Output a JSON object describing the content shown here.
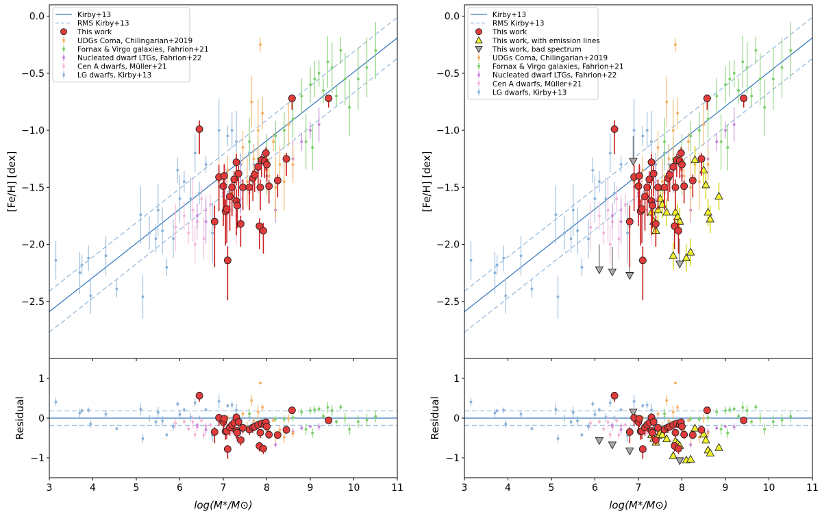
{
  "chart_data": [
    {
      "type": "scatter",
      "panel": "left",
      "xlabel": "log(M*/M⊙)",
      "ylabel_main": "[Fe/H] [dex]",
      "ylabel_residual": "Residual",
      "xlim": [
        3,
        11
      ],
      "ylim_main": [
        -3.0,
        0.1
      ],
      "ylim_residual": [
        -1.5,
        1.5
      ],
      "xticks": [
        "3",
        "4",
        "5",
        "6",
        "7",
        "8",
        "9",
        "10",
        "11"
      ],
      "yticks_main": [
        "0.0",
        "−0.5",
        "−1.0",
        "−1.5",
        "−2.0",
        "−2.5"
      ],
      "yticks_residual": [
        "1",
        "0",
        "−1"
      ],
      "legend": [
        "Kirby+13",
        "RMS Kirby+13",
        "This work",
        "UDGs Coma, Chilingarian+2019",
        "Fornax & Virgo galaxies, Fahrion+21",
        "Nucleated dwarf LTGs, Fahrion+22",
        "Cen A dwarfs, Müller+21",
        "LG dwarfs, Kirby+13"
      ]
    },
    {
      "type": "scatter",
      "panel": "right",
      "xlabel": "log(M*/M⊙)",
      "ylabel_main": "[Fe/H] [dex]",
      "ylabel_residual": "Residual",
      "xlim": [
        3,
        11
      ],
      "ylim_main": [
        -3.0,
        0.1
      ],
      "ylim_residual": [
        -1.5,
        1.5
      ],
      "xticks": [
        "3",
        "4",
        "5",
        "6",
        "7",
        "8",
        "9",
        "10",
        "11"
      ],
      "yticks_main": [
        "0.0",
        "−0.5",
        "−1.0",
        "−1.5",
        "−2.0",
        "−2.5"
      ],
      "yticks_residual": [
        "1",
        "0",
        "−1"
      ],
      "legend": [
        "Kirby+13",
        "RMS Kirby+13",
        "This work",
        "This work, with emission lines",
        "This work, bad spectrum",
        "UDGs Coma, Chilingarian+2019",
        "Fornax & Virgo galaxies, Fahrion+21",
        "Nucleated dwarf LTGs, Fahrion+22",
        "Cen A dwarfs, Müller+21",
        "LG dwarfs, Kirby+13"
      ]
    }
  ],
  "relation": {
    "name": "Kirby+13",
    "line": [
      [
        3,
        -2.59
      ],
      [
        11,
        -0.19
      ]
    ],
    "rms": 0.18
  },
  "series": {
    "this_work": {
      "color": "#e23b3b",
      "points": [
        [
          6.45,
          -0.99,
          0.22
        ],
        [
          6.8,
          -1.8,
          0.4
        ],
        [
          6.9,
          -1.41,
          0.3
        ],
        [
          7.0,
          -1.49,
          0.35
        ],
        [
          7.02,
          -1.4,
          0.3
        ],
        [
          7.05,
          -1.71,
          0.3
        ],
        [
          7.08,
          -1.69,
          0.3
        ],
        [
          7.1,
          -2.14,
          0.35
        ],
        [
          7.15,
          -1.58,
          0.3
        ],
        [
          7.2,
          -1.5,
          0.25
        ],
        [
          7.25,
          -1.43,
          0.2
        ],
        [
          7.3,
          -1.28,
          0.2
        ],
        [
          7.3,
          -1.62,
          0.3
        ],
        [
          7.32,
          -1.66,
          0.2
        ],
        [
          7.35,
          -1.38,
          0.2
        ],
        [
          7.4,
          -1.82,
          0.2
        ],
        [
          7.45,
          -1.5,
          0.2
        ],
        [
          7.6,
          -1.5,
          0.2
        ],
        [
          7.68,
          -1.42,
          0.2
        ],
        [
          7.72,
          -1.39,
          0.15
        ],
        [
          7.8,
          -1.32,
          0.15
        ],
        [
          7.83,
          -1.84,
          0.2
        ],
        [
          7.85,
          -1.5,
          0.2
        ],
        [
          7.88,
          -1.26,
          0.15
        ],
        [
          7.92,
          -1.88,
          0.2
        ],
        [
          7.95,
          -1.27,
          0.15
        ],
        [
          7.98,
          -1.2,
          0.15
        ],
        [
          8.0,
          -1.3,
          0.15
        ],
        [
          8.05,
          -1.49,
          0.15
        ],
        [
          8.25,
          -1.44,
          0.15
        ],
        [
          8.45,
          -1.25,
          0.15
        ],
        [
          8.58,
          -0.72,
          0.1
        ],
        [
          9.42,
          -0.72,
          0.08
        ]
      ]
    },
    "emission_lines": {
      "color": "#f2f22c",
      "points": [
        [
          7.3,
          -1.72
        ],
        [
          7.35,
          -1.8
        ],
        [
          7.4,
          -1.88
        ],
        [
          7.45,
          -1.7
        ],
        [
          7.5,
          -1.6
        ],
        [
          7.55,
          -1.65
        ],
        [
          7.6,
          -1.5
        ],
        [
          7.65,
          -1.72
        ],
        [
          7.8,
          -2.1
        ],
        [
          7.85,
          -1.72
        ],
        [
          7.9,
          -1.76
        ],
        [
          7.95,
          -1.8
        ],
        [
          8.1,
          -2.12
        ],
        [
          8.2,
          -2.07
        ],
        [
          8.3,
          -1.26
        ],
        [
          8.5,
          -1.35
        ],
        [
          8.55,
          -1.48
        ],
        [
          8.6,
          -1.72
        ],
        [
          8.65,
          -1.78
        ],
        [
          8.85,
          -1.58
        ]
      ]
    },
    "bad_spectrum": {
      "color": "#a9a9a9",
      "points": [
        [
          6.1,
          -2.22
        ],
        [
          6.4,
          -2.24
        ],
        [
          6.8,
          -2.27
        ],
        [
          6.88,
          -1.27
        ],
        [
          7.95,
          -2.17
        ]
      ]
    },
    "udgs": {
      "color": "#f5b266",
      "points": [
        [
          6.9,
          -1.45
        ],
        [
          7.0,
          -1.7
        ],
        [
          7.1,
          -1.35
        ],
        [
          7.2,
          -1.55
        ],
        [
          7.3,
          -1.3
        ],
        [
          7.45,
          -1.15
        ],
        [
          7.55,
          -1.45
        ],
        [
          7.65,
          -0.75
        ],
        [
          7.7,
          -1.25
        ],
        [
          7.8,
          -1.0
        ],
        [
          7.85,
          -0.25
        ],
        [
          7.9,
          -0.85
        ],
        [
          8.0,
          -1.35
        ],
        [
          8.05,
          -1.4
        ],
        [
          8.15,
          -1.1
        ],
        [
          8.2,
          -1.5
        ],
        [
          8.3,
          -1.3
        ],
        [
          8.4,
          -1.45
        ],
        [
          8.5,
          -0.95
        ],
        [
          8.6,
          -1.3
        ]
      ]
    },
    "fornax_virgo": {
      "color": "#7fcf6e",
      "points": [
        [
          7.6,
          -1.1
        ],
        [
          7.8,
          -1.25
        ],
        [
          8.0,
          -1.3
        ],
        [
          8.2,
          -1.05
        ],
        [
          8.4,
          -1.0
        ],
        [
          8.6,
          -0.9
        ],
        [
          8.8,
          -0.7
        ],
        [
          8.9,
          -1.1
        ],
        [
          9.0,
          -0.6
        ],
        [
          9.1,
          -0.55
        ],
        [
          9.2,
          -0.5
        ],
        [
          9.3,
          -0.65
        ],
        [
          9.5,
          -0.45
        ],
        [
          9.6,
          -0.7
        ],
        [
          9.7,
          -0.3
        ],
        [
          9.8,
          -0.55
        ],
        [
          9.9,
          -0.8
        ],
        [
          10.1,
          -0.55
        ],
        [
          10.3,
          -0.45
        ],
        [
          10.5,
          -0.3
        ],
        [
          9.4,
          -0.4
        ],
        [
          9.05,
          -1.15
        ]
      ]
    },
    "nucleated_ltgs": {
      "color": "#c488d9",
      "points": [
        [
          6.4,
          -1.75
        ],
        [
          6.6,
          -1.8
        ],
        [
          7.0,
          -1.55
        ],
        [
          7.4,
          -1.5
        ],
        [
          7.8,
          -1.35
        ],
        [
          8.0,
          -1.4
        ],
        [
          8.2,
          -1.7
        ],
        [
          8.6,
          -1.25
        ],
        [
          8.8,
          -1.1
        ],
        [
          9.0,
          -1.0
        ],
        [
          9.2,
          -0.95
        ]
      ]
    },
    "cen_a": {
      "color": "#f3b6d8",
      "points": [
        [
          5.9,
          -1.85
        ],
        [
          6.1,
          -1.75
        ],
        [
          6.2,
          -1.9
        ],
        [
          6.3,
          -1.7
        ],
        [
          6.4,
          -1.8
        ],
        [
          6.5,
          -1.6
        ],
        [
          6.55,
          -1.95
        ],
        [
          6.6,
          -1.7
        ],
        [
          6.7,
          -1.65
        ],
        [
          6.8,
          -1.85
        ],
        [
          6.9,
          -1.5
        ],
        [
          7.05,
          -1.45
        ],
        [
          7.2,
          -1.7
        ],
        [
          7.4,
          -1.6
        ],
        [
          7.6,
          -1.55
        ],
        [
          7.3,
          -1.75
        ],
        [
          6.35,
          -2.0
        ]
      ]
    },
    "lg_dwarfs": {
      "color": "#8fb5d9",
      "points": [
        [
          3.15,
          -2.14
        ],
        [
          3.7,
          -2.25
        ],
        [
          3.75,
          -2.18
        ],
        [
          3.9,
          -2.12
        ],
        [
          3.95,
          -2.45
        ],
        [
          4.3,
          -2.1
        ],
        [
          4.55,
          -2.39
        ],
        [
          5.1,
          -1.74
        ],
        [
          5.15,
          -2.46
        ],
        [
          5.3,
          -1.9
        ],
        [
          5.45,
          -1.95
        ],
        [
          5.5,
          -1.7
        ],
        [
          5.6,
          -1.88
        ],
        [
          5.7,
          -2.2
        ],
        [
          5.85,
          -1.95
        ],
        [
          5.95,
          -1.35
        ],
        [
          6.0,
          -1.6
        ],
        [
          6.1,
          -1.45
        ],
        [
          6.25,
          -1.6
        ],
        [
          6.35,
          -1.2
        ],
        [
          6.45,
          -1.55
        ],
        [
          6.6,
          -1.3
        ],
        [
          6.75,
          -1.9
        ],
        [
          6.9,
          -1.0
        ],
        [
          7.1,
          -1.05
        ],
        [
          7.2,
          -1.0
        ],
        [
          7.3,
          -1.1
        ],
        [
          7.4,
          -1.3
        ],
        [
          7.6,
          -1.2
        ],
        [
          7.7,
          -1.3
        ]
      ]
    }
  }
}
